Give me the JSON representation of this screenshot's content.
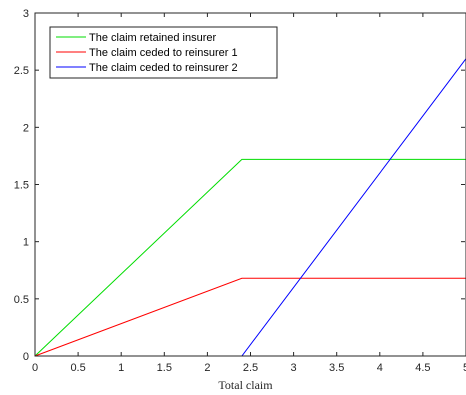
{
  "chart_data": {
    "type": "line",
    "title": "",
    "xlabel": "Total claim",
    "ylabel": "",
    "xlim": [
      0,
      5
    ],
    "ylim": [
      0,
      3
    ],
    "xticks": [
      0,
      0.5,
      1,
      1.5,
      2,
      2.5,
      3,
      3.5,
      4,
      4.5,
      5
    ],
    "xtick_labels": [
      "0",
      "0.5",
      "1",
      "1.5",
      "2",
      "2.5",
      "3",
      "3.5",
      "4",
      "4.5",
      "5"
    ],
    "yticks": [
      0,
      0.5,
      1,
      1.5,
      2,
      2.5,
      3
    ],
    "ytick_labels": [
      "0",
      "0.5",
      "1",
      "1.5",
      "2",
      "2.5",
      "3"
    ],
    "grid": false,
    "legend_position": "top-left",
    "series": [
      {
        "name": "The claim retained insurer",
        "color": "#00dd00",
        "x": [
          0,
          2.4,
          5
        ],
        "y": [
          0,
          1.72,
          1.72
        ]
      },
      {
        "name": "The claim ceded to reinsurer 1",
        "color": "#ff0000",
        "x": [
          0,
          2.4,
          5
        ],
        "y": [
          0,
          0.68,
          0.68
        ]
      },
      {
        "name": "The claim ceded to reinsurer 2",
        "color": "#0000ff",
        "x": [
          0,
          2.4,
          5
        ],
        "y": [
          0,
          0,
          2.6
        ]
      }
    ]
  }
}
